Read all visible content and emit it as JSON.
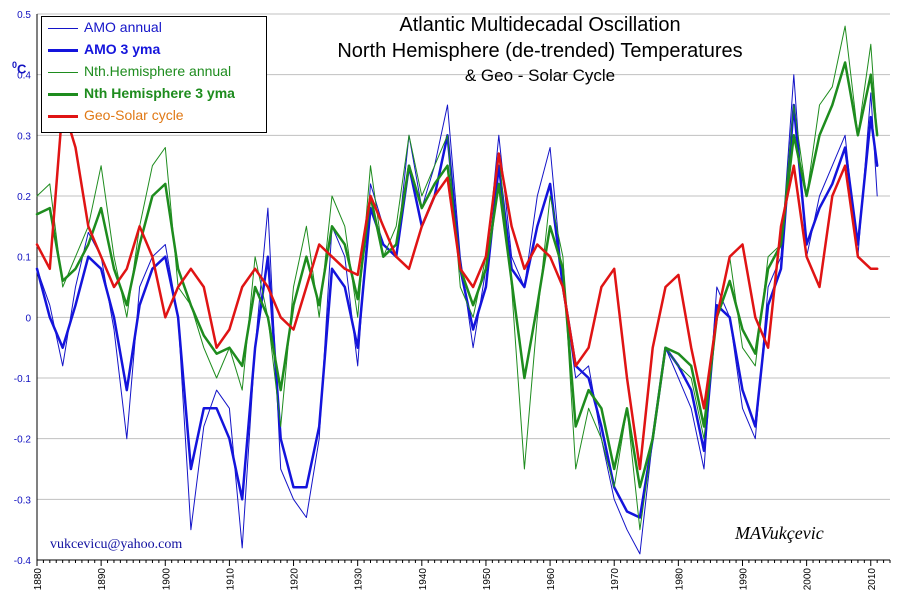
{
  "chart_data": {
    "type": "line",
    "title_lines": [
      "Atlantic Multidecadal Oscillation",
      "North Hemisphere (de-trended) Temperatures",
      "& Geo - Solar Cycle"
    ],
    "ylabel": "0C",
    "xlim": [
      1880,
      2013
    ],
    "ylim": [
      -0.4,
      0.5
    ],
    "x_ticks": [
      "1880",
      "1890",
      "1900",
      "1910",
      "1920",
      "1930",
      "1940",
      "1950",
      "1960",
      "1970",
      "1980",
      "1990",
      "2000",
      "2010"
    ],
    "y_ticks": [
      "0.5",
      "0.4",
      "0.3",
      "0.2",
      "0.1",
      "0",
      "-0.1",
      "-0.2",
      "-0.3",
      "-0.4"
    ],
    "grid": true,
    "legend_position": "top-left",
    "series": [
      {
        "name": "AMO annual",
        "color": "#1414c8",
        "width": 1,
        "x": [
          1880,
          1882,
          1884,
          1886,
          1888,
          1890,
          1892,
          1894,
          1896,
          1898,
          1900,
          1902,
          1904,
          1906,
          1908,
          1910,
          1912,
          1914,
          1916,
          1918,
          1920,
          1922,
          1924,
          1926,
          1928,
          1930,
          1932,
          1934,
          1936,
          1938,
          1940,
          1942,
          1944,
          1946,
          1948,
          1950,
          1952,
          1954,
          1956,
          1958,
          1960,
          1962,
          1964,
          1966,
          1968,
          1970,
          1972,
          1974,
          1976,
          1978,
          1980,
          1982,
          1984,
          1986,
          1988,
          1990,
          1992,
          1994,
          1996,
          1998,
          2000,
          2002,
          2004,
          2006,
          2008,
          2010,
          2011
        ],
        "values": [
          0.08,
          0.02,
          -0.08,
          0.05,
          0.14,
          0.1,
          -0.02,
          -0.2,
          0.05,
          0.1,
          0.12,
          0.0,
          -0.35,
          -0.18,
          -0.12,
          -0.15,
          -0.38,
          -0.05,
          0.18,
          -0.25,
          -0.3,
          -0.33,
          -0.2,
          0.15,
          0.1,
          -0.08,
          0.22,
          0.15,
          0.1,
          0.3,
          0.18,
          0.25,
          0.35,
          0.1,
          -0.05,
          0.08,
          0.3,
          0.1,
          0.05,
          0.2,
          0.28,
          0.05,
          -0.1,
          -0.08,
          -0.2,
          -0.3,
          -0.35,
          -0.39,
          -0.2,
          -0.05,
          -0.1,
          -0.15,
          -0.25,
          0.05,
          0.0,
          -0.15,
          -0.2,
          0.05,
          0.1,
          0.4,
          0.1,
          0.2,
          0.25,
          0.3,
          0.1,
          0.37,
          0.2
        ]
      },
      {
        "name": "AMO 3 yma",
        "color": "#1414dc",
        "width": 2.5,
        "x": [
          1880,
          1882,
          1884,
          1886,
          1888,
          1890,
          1892,
          1894,
          1896,
          1898,
          1900,
          1902,
          1904,
          1906,
          1908,
          1910,
          1912,
          1914,
          1916,
          1918,
          1920,
          1922,
          1924,
          1926,
          1928,
          1930,
          1932,
          1934,
          1936,
          1938,
          1940,
          1942,
          1944,
          1946,
          1948,
          1950,
          1952,
          1954,
          1956,
          1958,
          1960,
          1962,
          1964,
          1966,
          1968,
          1970,
          1972,
          1974,
          1976,
          1978,
          1980,
          1982,
          1984,
          1986,
          1988,
          1990,
          1992,
          1994,
          1996,
          1998,
          2000,
          2002,
          2004,
          2006,
          2008,
          2010,
          2011
        ],
        "values": [
          0.08,
          0.0,
          -0.05,
          0.02,
          0.1,
          0.08,
          0.0,
          -0.12,
          0.02,
          0.08,
          0.1,
          0.0,
          -0.25,
          -0.15,
          -0.15,
          -0.2,
          -0.3,
          -0.05,
          0.1,
          -0.2,
          -0.28,
          -0.28,
          -0.18,
          0.08,
          0.05,
          -0.05,
          0.18,
          0.12,
          0.1,
          0.25,
          0.15,
          0.2,
          0.3,
          0.08,
          -0.02,
          0.05,
          0.25,
          0.08,
          0.05,
          0.15,
          0.22,
          0.05,
          -0.08,
          -0.1,
          -0.18,
          -0.28,
          -0.32,
          -0.33,
          -0.2,
          -0.05,
          -0.08,
          -0.12,
          -0.22,
          0.02,
          0.0,
          -0.12,
          -0.18,
          0.02,
          0.08,
          0.35,
          0.12,
          0.18,
          0.22,
          0.28,
          0.12,
          0.33,
          0.25
        ]
      },
      {
        "name": "Nth.Hemisphere annual",
        "color": "#1e8c1e",
        "width": 1,
        "x": [
          1880,
          1882,
          1884,
          1886,
          1888,
          1890,
          1892,
          1894,
          1896,
          1898,
          1900,
          1902,
          1904,
          1906,
          1908,
          1910,
          1912,
          1914,
          1916,
          1918,
          1920,
          1922,
          1924,
          1926,
          1928,
          1930,
          1932,
          1934,
          1936,
          1938,
          1940,
          1942,
          1944,
          1946,
          1948,
          1950,
          1952,
          1954,
          1956,
          1958,
          1960,
          1962,
          1964,
          1966,
          1968,
          1970,
          1972,
          1974,
          1976,
          1978,
          1980,
          1982,
          1984,
          1986,
          1988,
          1990,
          1992,
          1994,
          1996,
          1998,
          2000,
          2002,
          2004,
          2006,
          2008,
          2010,
          2011
        ],
        "values": [
          0.2,
          0.22,
          0.05,
          0.1,
          0.15,
          0.25,
          0.1,
          0.0,
          0.15,
          0.25,
          0.28,
          0.05,
          0.02,
          -0.05,
          -0.1,
          -0.05,
          -0.12,
          0.1,
          0.0,
          -0.18,
          0.05,
          0.15,
          0.0,
          0.2,
          0.15,
          0.0,
          0.25,
          0.1,
          0.15,
          0.3,
          0.2,
          0.25,
          0.3,
          0.05,
          0.0,
          0.1,
          0.27,
          0.05,
          -0.25,
          0.0,
          0.2,
          0.1,
          -0.25,
          -0.15,
          -0.2,
          -0.28,
          -0.15,
          -0.35,
          -0.2,
          -0.05,
          -0.08,
          -0.1,
          -0.2,
          0.0,
          0.1,
          -0.05,
          -0.08,
          0.1,
          0.12,
          0.35,
          0.2,
          0.35,
          0.38,
          0.48,
          0.3,
          0.45,
          0.3
        ]
      },
      {
        "name": "Nth Hemisphere 3 yma",
        "color": "#1e8c1e",
        "width": 2.5,
        "x": [
          1880,
          1882,
          1884,
          1886,
          1888,
          1890,
          1892,
          1894,
          1896,
          1898,
          1900,
          1902,
          1904,
          1906,
          1908,
          1910,
          1912,
          1914,
          1916,
          1918,
          1920,
          1922,
          1924,
          1926,
          1928,
          1930,
          1932,
          1934,
          1936,
          1938,
          1940,
          1942,
          1944,
          1946,
          1948,
          1950,
          1952,
          1954,
          1956,
          1958,
          1960,
          1962,
          1964,
          1966,
          1968,
          1970,
          1972,
          1974,
          1976,
          1978,
          1980,
          1982,
          1984,
          1986,
          1988,
          1990,
          1992,
          1994,
          1996,
          1998,
          2000,
          2002,
          2004,
          2006,
          2008,
          2010,
          2011
        ],
        "values": [
          0.17,
          0.18,
          0.06,
          0.08,
          0.12,
          0.18,
          0.08,
          0.02,
          0.12,
          0.2,
          0.22,
          0.08,
          0.02,
          -0.03,
          -0.06,
          -0.05,
          -0.08,
          0.05,
          0.0,
          -0.12,
          0.02,
          0.1,
          0.02,
          0.15,
          0.12,
          0.03,
          0.2,
          0.1,
          0.12,
          0.25,
          0.18,
          0.22,
          0.25,
          0.08,
          0.02,
          0.08,
          0.22,
          0.06,
          -0.1,
          0.02,
          0.15,
          0.08,
          -0.18,
          -0.12,
          -0.15,
          -0.25,
          -0.15,
          -0.28,
          -0.2,
          -0.05,
          -0.06,
          -0.08,
          -0.18,
          0.0,
          0.06,
          -0.02,
          -0.06,
          0.08,
          0.12,
          0.3,
          0.2,
          0.3,
          0.35,
          0.42,
          0.3,
          0.4,
          0.3
        ]
      },
      {
        "name": "Geo-Solar cycle",
        "color": "#e01414",
        "width": 2.5,
        "x": [
          1880,
          1882,
          1884,
          1886,
          1888,
          1890,
          1892,
          1894,
          1896,
          1898,
          1900,
          1902,
          1904,
          1906,
          1908,
          1910,
          1912,
          1914,
          1916,
          1918,
          1920,
          1922,
          1924,
          1926,
          1928,
          1930,
          1932,
          1934,
          1936,
          1938,
          1940,
          1942,
          1944,
          1946,
          1948,
          1950,
          1952,
          1954,
          1956,
          1958,
          1960,
          1962,
          1964,
          1966,
          1968,
          1970,
          1972,
          1974,
          1976,
          1978,
          1980,
          1982,
          1984,
          1986,
          1988,
          1990,
          1992,
          1994,
          1996,
          1998,
          2000,
          2002,
          2004,
          2006,
          2008,
          2010,
          2011
        ],
        "values": [
          0.12,
          0.08,
          0.35,
          0.28,
          0.15,
          0.1,
          0.05,
          0.08,
          0.15,
          0.1,
          0.0,
          0.05,
          0.08,
          0.05,
          -0.05,
          -0.02,
          0.05,
          0.08,
          0.05,
          0.0,
          -0.02,
          0.05,
          0.12,
          0.1,
          0.08,
          0.07,
          0.2,
          0.15,
          0.1,
          0.08,
          0.15,
          0.2,
          0.23,
          0.08,
          0.05,
          0.1,
          0.27,
          0.15,
          0.08,
          0.12,
          0.1,
          0.05,
          -0.08,
          -0.05,
          0.05,
          0.08,
          -0.1,
          -0.25,
          -0.05,
          0.05,
          0.07,
          -0.05,
          -0.15,
          0.0,
          0.1,
          0.12,
          0.0,
          -0.05,
          0.15,
          0.25,
          0.1,
          0.05,
          0.2,
          0.25,
          0.1,
          0.08,
          0.08
        ]
      }
    ]
  },
  "legend": {
    "items": [
      {
        "label": "AMO annual",
        "color": "#1414c8",
        "text_color": "#1414c8",
        "width": 1,
        "bold": false
      },
      {
        "label": "AMO 3 yma",
        "color": "#1414dc",
        "text_color": "#1414dc",
        "width": 3,
        "bold": true
      },
      {
        "label": "Nth.Hemisphere annual",
        "color": "#1e8c1e",
        "text_color": "#1e8c1e",
        "width": 1,
        "bold": false
      },
      {
        "label": "Nth Hemisphere 3 yma",
        "color": "#1e8c1e",
        "text_color": "#1e8c1e",
        "width": 3,
        "bold": true
      },
      {
        "label": "Geo-Solar cycle",
        "color": "#e01414",
        "text_color": "#e07814",
        "width": 3,
        "bold": false
      }
    ]
  },
  "credits": {
    "email": "vukcevicu@yahoo.com",
    "signature": "MAVukçevic"
  }
}
